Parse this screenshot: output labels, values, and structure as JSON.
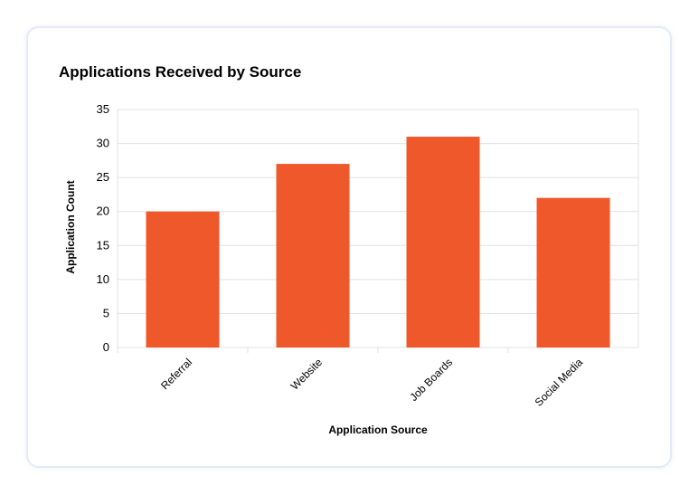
{
  "chart_data": {
    "type": "bar",
    "title": "Applications Received by Source",
    "xlabel": "Application Source",
    "ylabel": "Application Count",
    "categories": [
      "Referral",
      "Website",
      "Job Boards",
      "Social Media"
    ],
    "values": [
      20,
      27,
      31,
      22
    ],
    "ylim": [
      0,
      35
    ],
    "yticks": [
      0,
      5,
      10,
      15,
      20,
      25,
      30,
      35
    ],
    "grid": true,
    "bar_color": "#ee582b",
    "grid_color": "#e0e0e0"
  }
}
